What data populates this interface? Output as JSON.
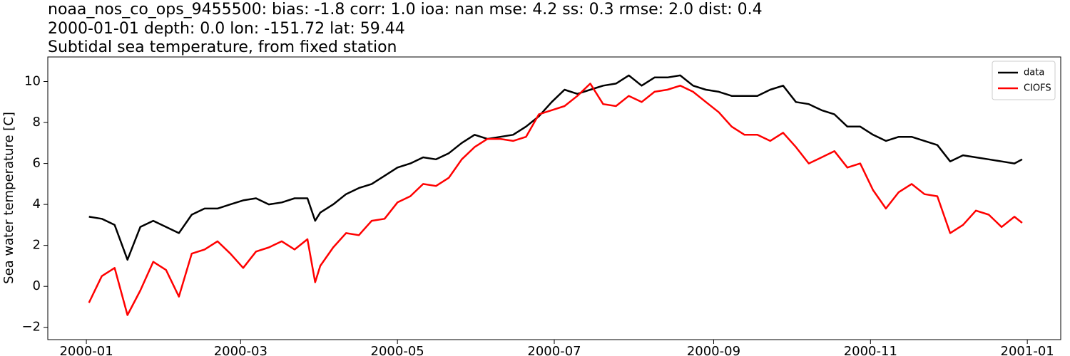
{
  "chart_data": {
    "type": "line",
    "title": [
      "noaa_nos_co_ops_9455500: bias: -1.8  corr: 1.0  ioa: nan  mse: 4.2  ss: 0.3  rmse: 2.0  dist: 0.4",
      "2000-01-01 depth: 0.0 lon: -151.72 lat: 59.44",
      "Subtidal sea temperature, from fixed station"
    ],
    "y_label": "Sea water temperature [C]",
    "legend": "upper right",
    "xlim": [
      "1999-12-17",
      "2001-01-14"
    ],
    "xticks": [
      "2000-01",
      "2000-03",
      "2000-05",
      "2000-07",
      "2000-09",
      "2000-11",
      "2001-01"
    ],
    "ylim": [
      -2.6,
      11.2
    ],
    "yticks": [
      {
        "value": -2,
        "label": "−2"
      },
      0,
      2,
      4,
      6,
      8,
      10
    ],
    "x": [
      "2000-01-02",
      "2000-01-07",
      "2000-01-12",
      "2000-01-17",
      "2000-01-22",
      "2000-01-27",
      "2000-02-01",
      "2000-02-06",
      "2000-02-11",
      "2000-02-16",
      "2000-02-21",
      "2000-02-26",
      "2000-03-02",
      "2000-03-07",
      "2000-03-12",
      "2000-03-17",
      "2000-03-22",
      "2000-03-27",
      "2000-03-30",
      "2000-04-01",
      "2000-04-06",
      "2000-04-11",
      "2000-04-16",
      "2000-04-21",
      "2000-04-26",
      "2000-05-01",
      "2000-05-06",
      "2000-05-11",
      "2000-05-16",
      "2000-05-21",
      "2000-05-26",
      "2000-05-31",
      "2000-06-05",
      "2000-06-10",
      "2000-06-15",
      "2000-06-20",
      "2000-06-25",
      "2000-06-30",
      "2000-07-05",
      "2000-07-10",
      "2000-07-15",
      "2000-07-20",
      "2000-07-25",
      "2000-07-30",
      "2000-08-04",
      "2000-08-09",
      "2000-08-14",
      "2000-08-19",
      "2000-08-24",
      "2000-08-29",
      "2000-09-03",
      "2000-09-08",
      "2000-09-13",
      "2000-09-18",
      "2000-09-23",
      "2000-09-28",
      "2000-10-03",
      "2000-10-08",
      "2000-10-13",
      "2000-10-18",
      "2000-10-23",
      "2000-10-28",
      "2000-11-02",
      "2000-11-07",
      "2000-11-12",
      "2000-11-17",
      "2000-11-22",
      "2000-11-27",
      "2000-12-02",
      "2000-12-07",
      "2000-12-12",
      "2000-12-17",
      "2000-12-22",
      "2000-12-27",
      "2000-12-30"
    ],
    "series": [
      {
        "name": "data",
        "color": "#000000",
        "values": [
          3.4,
          3.3,
          3.0,
          1.3,
          2.9,
          3.2,
          2.9,
          2.6,
          3.5,
          3.8,
          3.8,
          4.0,
          4.2,
          4.3,
          4.0,
          4.1,
          4.3,
          4.3,
          3.2,
          3.6,
          4.0,
          4.5,
          4.8,
          5.0,
          5.4,
          5.8,
          6.0,
          6.3,
          6.2,
          6.5,
          7.0,
          7.4,
          7.2,
          7.3,
          7.4,
          7.8,
          8.3,
          9.0,
          9.6,
          9.4,
          9.6,
          9.8,
          9.9,
          10.3,
          9.8,
          10.2,
          10.2,
          10.3,
          9.8,
          9.6,
          9.5,
          9.3,
          9.3,
          9.3,
          9.6,
          9.8,
          9.0,
          8.9,
          8.6,
          8.4,
          7.8,
          7.8,
          7.4,
          7.1,
          7.3,
          7.3,
          7.1,
          6.9,
          6.1,
          6.4,
          6.3,
          6.2,
          6.1,
          6.0,
          6.2
        ]
      },
      {
        "name": "CIOFS",
        "color": "#ff0000",
        "values": [
          -0.8,
          0.5,
          0.9,
          -1.4,
          -0.2,
          1.2,
          0.8,
          -0.5,
          1.6,
          1.8,
          2.2,
          1.6,
          0.9,
          1.7,
          1.9,
          2.2,
          1.8,
          2.3,
          0.2,
          1.0,
          1.9,
          2.6,
          2.5,
          3.2,
          3.3,
          4.1,
          4.4,
          5.0,
          4.9,
          5.3,
          6.2,
          6.8,
          7.2,
          7.2,
          7.1,
          7.3,
          8.4,
          8.6,
          8.8,
          9.3,
          9.9,
          8.9,
          8.8,
          9.3,
          9.0,
          9.5,
          9.6,
          9.8,
          9.5,
          9.0,
          8.5,
          7.8,
          7.4,
          7.4,
          7.1,
          7.5,
          6.8,
          6.0,
          6.3,
          6.6,
          5.8,
          6.0,
          4.7,
          3.8,
          4.6,
          5.0,
          4.5,
          4.4,
          2.6,
          3.0,
          3.7,
          3.5,
          2.9,
          3.4,
          3.1
        ]
      }
    ]
  }
}
